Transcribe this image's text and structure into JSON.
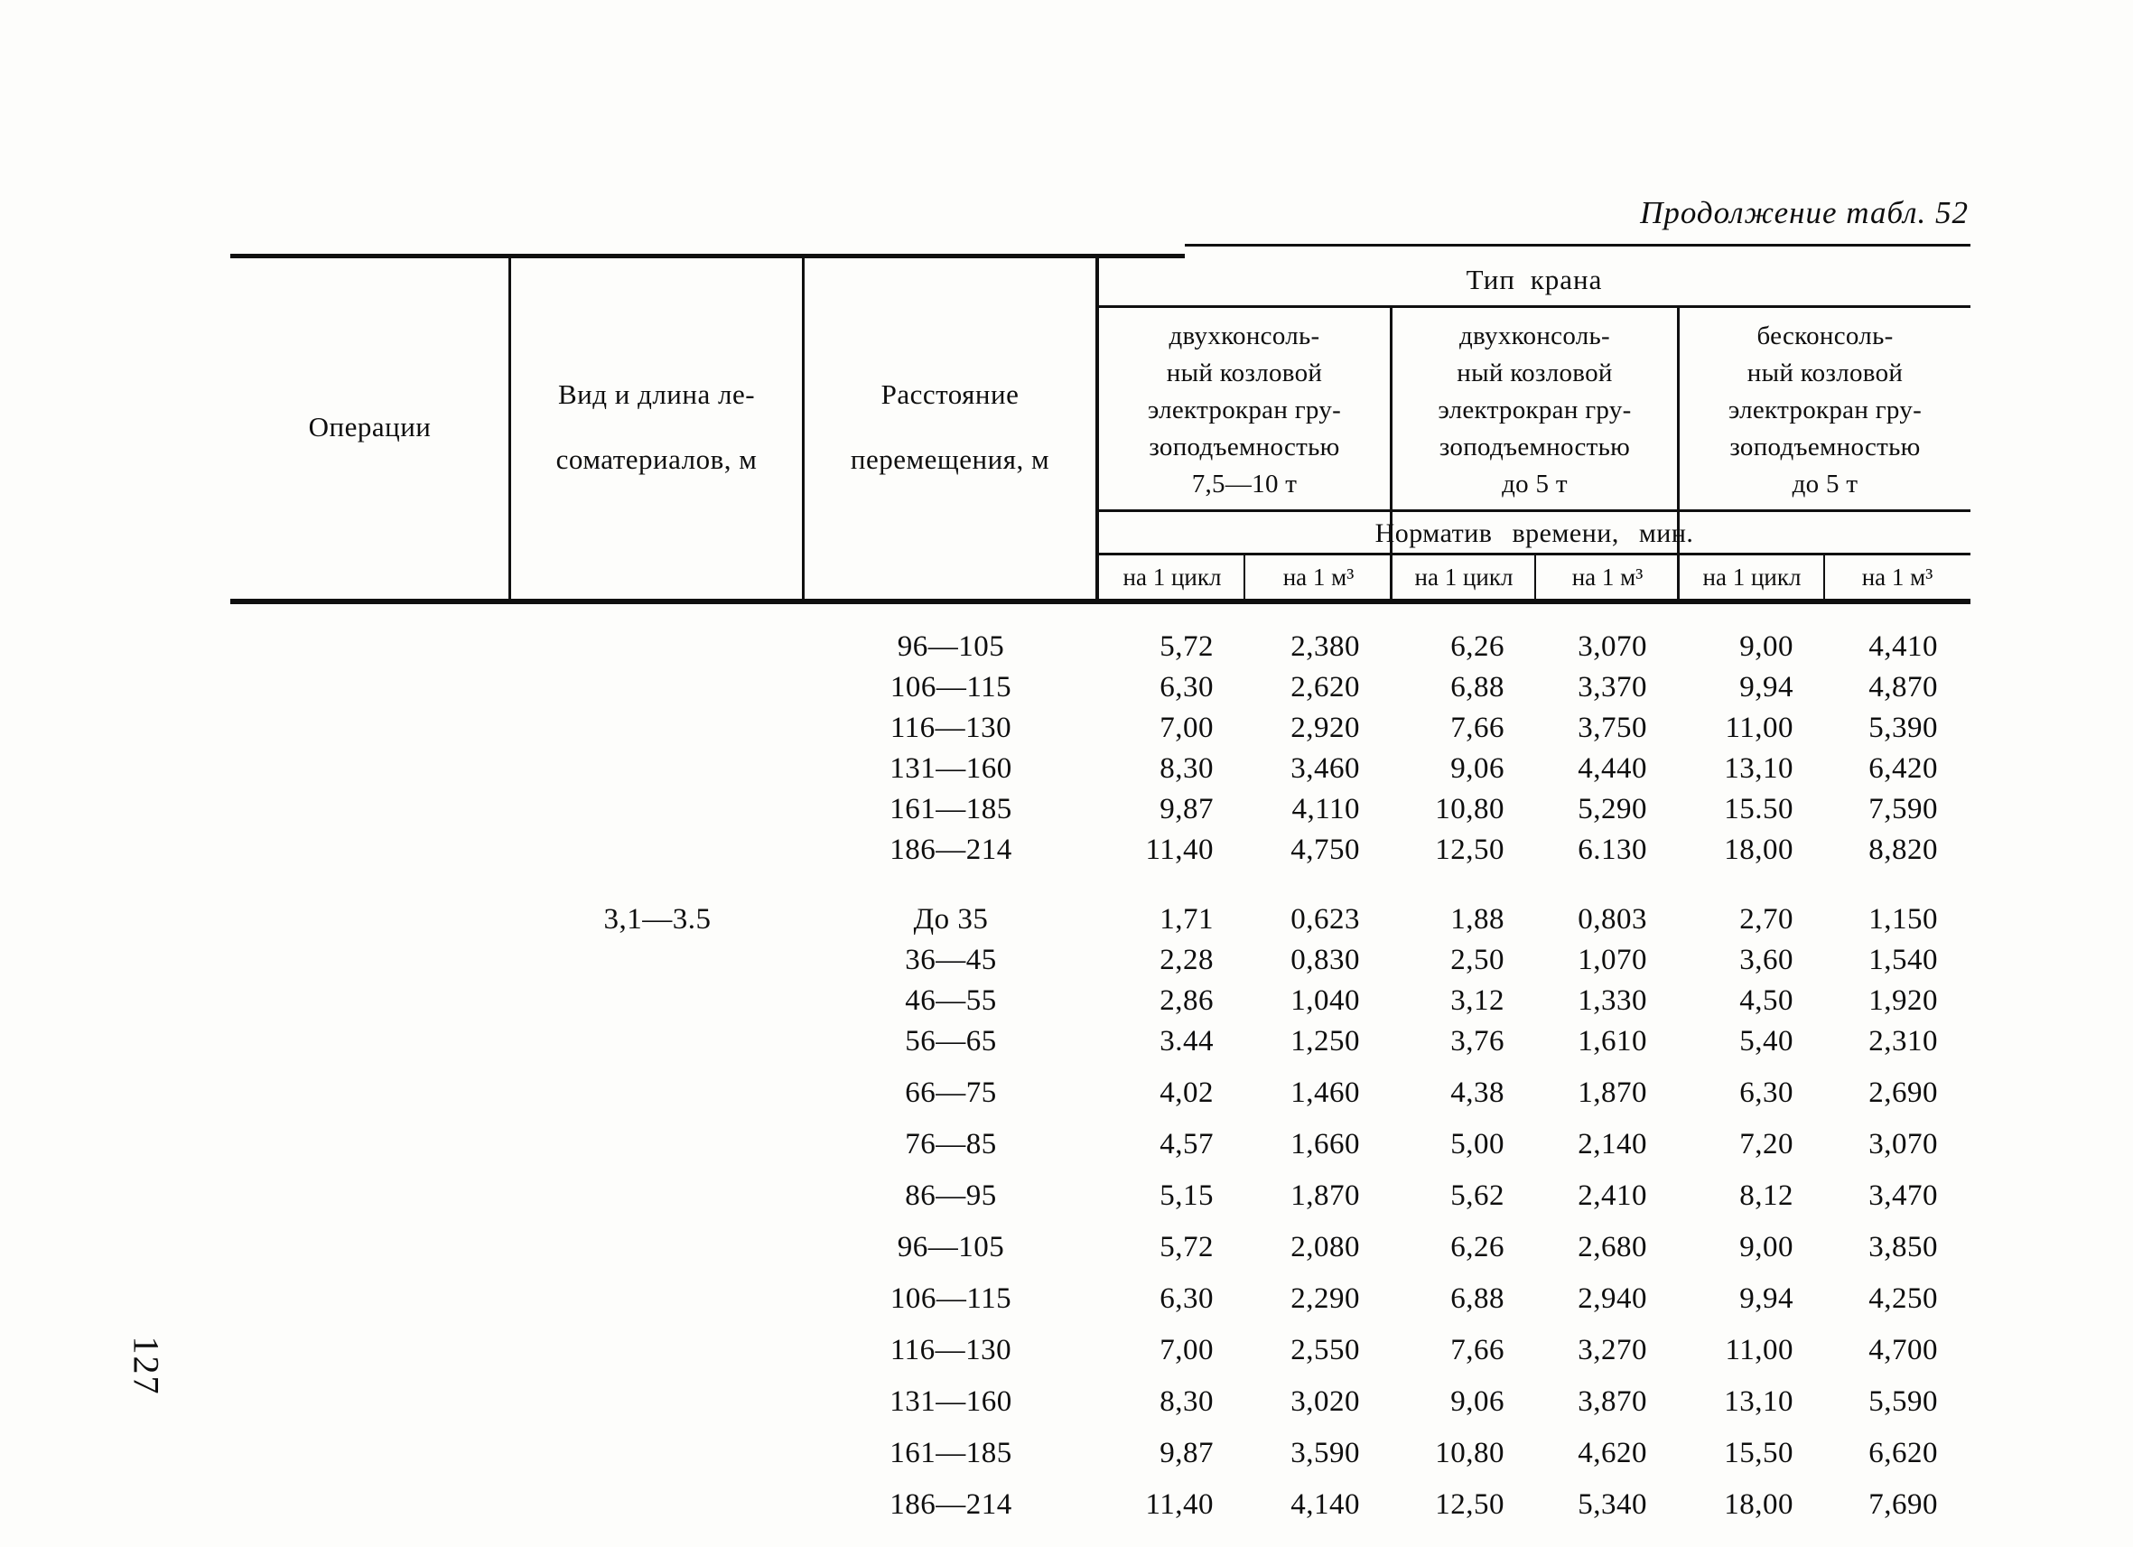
{
  "page": {
    "number": "127",
    "title": "Продолжение табл. 52"
  },
  "table": {
    "col_headers": {
      "operations": "Операции",
      "material_line1": "Вид и длина ле-",
      "material_line2": "соматериалов, м",
      "distance_line1": "Расстояние",
      "distance_line2": "перемещения, м",
      "crane_type_group": "Тип крана",
      "crane1_lines": [
        "двухконсоль-",
        "ный козловой",
        "электрокран гру-",
        "зоподъемностью",
        "7,5—10 т"
      ],
      "crane2_lines": [
        "двухконсоль-",
        "ный козловой",
        "электрокран гру-",
        "зоподъемностью",
        "до 5 т"
      ],
      "crane3_lines": [
        "бесконсоль-",
        "ный козловой",
        "электрокран гру-",
        "зоподъемностью",
        "до 5 т"
      ],
      "time_norm": "Норматив времени, мин.",
      "per_cycle": "на 1 цикл",
      "per_m3": "на 1 м³"
    },
    "sections": [
      {
        "material": "",
        "rows": [
          {
            "distance": "96—105",
            "values": [
              "5,72",
              "2,380",
              "6,26",
              "3,070",
              "9,00",
              "4,410"
            ]
          },
          {
            "distance": "106—115",
            "values": [
              "6,30",
              "2,620",
              "6,88",
              "3,370",
              "9,94",
              "4,870"
            ]
          },
          {
            "distance": "116—130",
            "values": [
              "7,00",
              "2,920",
              "7,66",
              "3,750",
              "11,00",
              "5,390"
            ]
          },
          {
            "distance": "131—160",
            "values": [
              "8,30",
              "3,460",
              "9,06",
              "4,440",
              "13,10",
              "6,420"
            ]
          },
          {
            "distance": "161—185",
            "values": [
              "9,87",
              "4,110",
              "10,80",
              "5,290",
              "15.50",
              "7,590"
            ]
          },
          {
            "distance": "186—214",
            "values": [
              "11,40",
              "4,750",
              "12,50",
              "6.130",
              "18,00",
              "8,820"
            ]
          }
        ]
      },
      {
        "material": "3,1—3.5",
        "rows": [
          {
            "distance": "До 35",
            "values": [
              "1,71",
              "0,623",
              "1,88",
              "0,803",
              "2,70",
              "1,150"
            ]
          },
          {
            "distance": "36—45",
            "values": [
              "2,28",
              "0,830",
              "2,50",
              "1,070",
              "3,60",
              "1,540"
            ]
          },
          {
            "distance": "46—55",
            "values": [
              "2,86",
              "1,040",
              "3,12",
              "1,330",
              "4,50",
              "1,920"
            ]
          },
          {
            "distance": "56—65",
            "values": [
              "3.44",
              "1,250",
              "3,76",
              "1,610",
              "5,40",
              "2,310"
            ]
          },
          {
            "distance": "66—75",
            "values": [
              "4,02",
              "1,460",
              "4,38",
              "1,870",
              "6,30",
              "2,690"
            ]
          },
          {
            "distance": "76—85",
            "values": [
              "4,57",
              "1,660",
              "5,00",
              "2,140",
              "7,20",
              "3,070"
            ]
          },
          {
            "distance": "86—95",
            "values": [
              "5,15",
              "1,870",
              "5,62",
              "2,410",
              "8,12",
              "3,470"
            ]
          },
          {
            "distance": "96—105",
            "values": [
              "5,72",
              "2,080",
              "6,26",
              "2,680",
              "9,00",
              "3,850"
            ]
          },
          {
            "distance": "106—115",
            "values": [
              "6,30",
              "2,290",
              "6,88",
              "2,940",
              "9,94",
              "4,250"
            ]
          },
          {
            "distance": "116—130",
            "values": [
              "7,00",
              "2,550",
              "7,66",
              "3,270",
              "11,00",
              "4,700"
            ]
          },
          {
            "distance": "131—160",
            "values": [
              "8,30",
              "3,020",
              "9,06",
              "3,870",
              "13,10",
              "5,590"
            ]
          },
          {
            "distance": "161—185",
            "values": [
              "9,87",
              "3,590",
              "10,80",
              "4,620",
              "15,50",
              "6,620"
            ]
          },
          {
            "distance": "186—214",
            "values": [
              "11,40",
              "4,140",
              "12,50",
              "5,340",
              "18,00",
              "7,690"
            ]
          }
        ]
      }
    ]
  }
}
